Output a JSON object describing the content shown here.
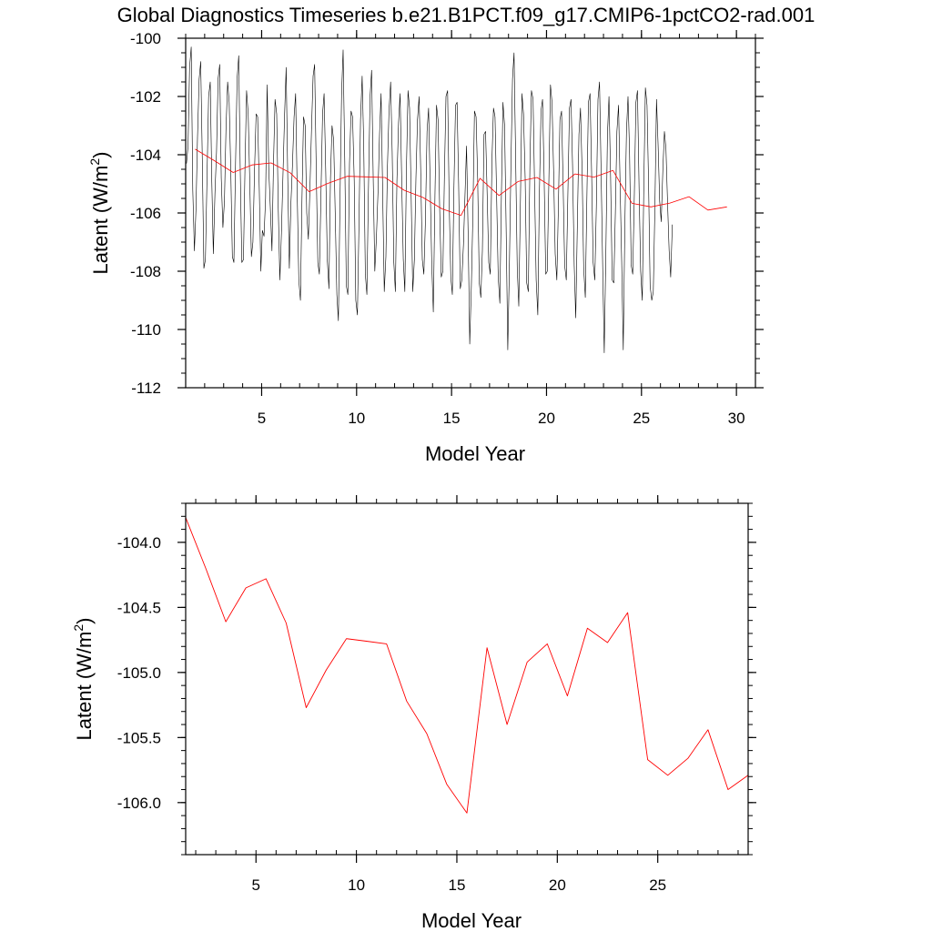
{
  "title": "Global Diagnostics Timeseries b.e21.B1PCT.f09_g17.CMIP6-1pctCO2-rad.001",
  "colors": {
    "monthly": "#000000",
    "annual": "#ff0000",
    "frame": "#000000"
  },
  "chart_data": [
    {
      "type": "line",
      "xlabel": "Model Year",
      "ylabel_main": "Latent (W/m",
      "ylabel_sup": "2",
      "ylabel_close": ")",
      "xlim": [
        1,
        31
      ],
      "ylim": [
        -112,
        -100
      ],
      "xticks": [
        5,
        10,
        15,
        20,
        25,
        30
      ],
      "yticks": [
        -112,
        -110,
        -108,
        -106,
        -104,
        -102,
        -100
      ],
      "ytick_labels": [
        "-112",
        "-110",
        "-108",
        "-106",
        "-104",
        "-102",
        "-100"
      ],
      "series": [
        {
          "color": "black",
          "x_start": 1.0417,
          "x_step": 0.08333,
          "values": [
            -104.3,
            -103.7,
            -101.0,
            -100.3,
            -105.2,
            -107.3,
            -105.9,
            -103.4,
            -101.4,
            -100.8,
            -104.2,
            -107.9,
            -107.6,
            -104.7,
            -102.0,
            -101.5,
            -104.9,
            -107.4,
            -105.3,
            -103.9,
            -101.4,
            -100.9,
            -104.8,
            -106.5,
            -105.6,
            -103.1,
            -101.5,
            -102.2,
            -104.6,
            -107.5,
            -107.7,
            -104.3,
            -101.4,
            -100.6,
            -104.6,
            -107.7,
            -107.6,
            -104.4,
            -101.8,
            -102.6,
            -104.9,
            -107.5,
            -107.0,
            -104.6,
            -102.6,
            -102.7,
            -105.2,
            -108.0,
            -106.6,
            -106.8,
            -105.5,
            -101.6,
            -104.5,
            -105.8,
            -107.3,
            -104.3,
            -102.1,
            -102.6,
            -105.8,
            -108.3,
            -106.7,
            -104.7,
            -102.6,
            -101.0,
            -104.9,
            -107.9,
            -105.7,
            -104.3,
            -102.7,
            -101.9,
            -105.4,
            -108.3,
            -109.0,
            -105.5,
            -102.7,
            -103.0,
            -106.0,
            -106.9,
            -105.2,
            -103.2,
            -101.3,
            -100.9,
            -104.6,
            -107.7,
            -108.1,
            -105.3,
            -102.6,
            -101.9,
            -104.6,
            -107.6,
            -108.6,
            -104.8,
            -103.0,
            -103.5,
            -106.0,
            -108.8,
            -109.7,
            -105.7,
            -101.9,
            -100.4,
            -104.2,
            -108.5,
            -108.8,
            -104.3,
            -102.5,
            -102.7,
            -104.9,
            -109.0,
            -109.5,
            -106.4,
            -102.8,
            -101.3,
            -103.6,
            -108.1,
            -108.8,
            -105.2,
            -102.0,
            -101.1,
            -104.9,
            -108.0,
            -106.9,
            -105.3,
            -103.3,
            -101.9,
            -105.4,
            -108.7,
            -107.5,
            -104.4,
            -102.5,
            -101.5,
            -103.9,
            -107.7,
            -108.7,
            -104.9,
            -102.9,
            -101.9,
            -104.8,
            -107.6,
            -108.7,
            -104.4,
            -101.8,
            -102.4,
            -105.5,
            -108.7,
            -107.6,
            -104.8,
            -102.8,
            -102.0,
            -104.5,
            -107.6,
            -108.1,
            -106.3,
            -103.2,
            -102.4,
            -105.0,
            -107.8,
            -109.4,
            -105.4,
            -102.3,
            -102.8,
            -105.9,
            -108.2,
            -108.0,
            -104.7,
            -102.0,
            -101.8,
            -105.6,
            -108.2,
            -108.8,
            -105.2,
            -102.3,
            -102.2,
            -105.0,
            -108.6,
            -108.3,
            -107.1,
            -105.4,
            -103.7,
            -106.8,
            -110.5,
            -108.5,
            -106.0,
            -102.5,
            -102.7,
            -104.8,
            -108.4,
            -108.9,
            -107.3,
            -103.3,
            -103.2,
            -105.3,
            -107.7,
            -108.1,
            -104.2,
            -102.4,
            -102.7,
            -105.5,
            -108.2,
            -109.1,
            -105.4,
            -102.2,
            -103.0,
            -106.5,
            -110.7,
            -108.0,
            -104.5,
            -101.4,
            -100.5,
            -104.0,
            -107.9,
            -109.2,
            -105.6,
            -101.9,
            -102.6,
            -104.8,
            -108.4,
            -108.7,
            -104.4,
            -101.8,
            -102.1,
            -105.2,
            -108.3,
            -109.5,
            -105.4,
            -102.5,
            -102.1,
            -104.7,
            -108.1,
            -108.0,
            -104.8,
            -101.6,
            -102.2,
            -104.6,
            -107.4,
            -108.3,
            -105.8,
            -102.8,
            -102.5,
            -105.0,
            -107.8,
            -108.3,
            -105.4,
            -102.4,
            -102.1,
            -104.4,
            -107.8,
            -109.6,
            -106.3,
            -103.3,
            -102.4,
            -104.6,
            -107.9,
            -108.9,
            -105.5,
            -102.2,
            -101.9,
            -104.6,
            -107.7,
            -108.3,
            -105.8,
            -102.1,
            -101.5,
            -104.5,
            -107.9,
            -110.8,
            -107.3,
            -103.3,
            -102.0,
            -104.8,
            -108.3,
            -108.4,
            -106.0,
            -103.2,
            -102.3,
            -105.0,
            -107.6,
            -110.7,
            -106.5,
            -103.2,
            -102.0,
            -103.9,
            -107.8,
            -108.1,
            -105.3,
            -102.2,
            -101.8,
            -105.2,
            -108.0,
            -109.0,
            -105.0,
            -101.7,
            -102.3,
            -105.0,
            -108.5,
            -109.0,
            -108.7,
            -105.7,
            -102.1,
            -103.6,
            -105.6,
            -106.3,
            -104.5,
            -103.2,
            -103.8,
            -105.7,
            -107.3,
            -108.2,
            -106.4
          ]
        },
        {
          "color": "red",
          "x": [
            1.5,
            2.5,
            3.5,
            4.5,
            5.5,
            6.5,
            7.5,
            8.5,
            9.5,
            10.5,
            11.5,
            12.5,
            13.5,
            14.5,
            15.5,
            16.5,
            17.5,
            18.5,
            19.5,
            20.5,
            21.5,
            22.5,
            23.5,
            24.5,
            25.5,
            26.5,
            27.5,
            28.5,
            29.5
          ],
          "values": [
            -103.81,
            -104.2,
            -104.61,
            -104.35,
            -104.28,
            -104.62,
            -105.27,
            -104.98,
            -104.74,
            -104.76,
            -104.78,
            -105.22,
            -105.47,
            -105.86,
            -106.08,
            -104.81,
            -105.4,
            -104.92,
            -104.78,
            -105.18,
            -104.66,
            -104.77,
            -104.54,
            -105.67,
            -105.79,
            -105.66,
            -105.44,
            -105.9,
            -105.79
          ]
        }
      ]
    },
    {
      "type": "line",
      "xlabel": "Model Year",
      "ylabel_main": "Latent (W/m",
      "ylabel_sup": "2",
      "ylabel_close": ")",
      "xlim": [
        1.5,
        29.5
      ],
      "ylim": [
        -106.4,
        -103.7
      ],
      "xticks": [
        5,
        10,
        15,
        20,
        25
      ],
      "yticks": [
        -106.0,
        -105.5,
        -105.0,
        -104.5,
        -104.0
      ],
      "ytick_labels": [
        "-106.0",
        "-105.5",
        "-105.0",
        "-104.5",
        "-104.0"
      ],
      "series": [
        {
          "color": "red",
          "x": [
            1.5,
            2.5,
            3.5,
            4.5,
            5.5,
            6.5,
            7.5,
            8.5,
            9.5,
            10.5,
            11.5,
            12.5,
            13.5,
            14.5,
            15.5,
            16.5,
            17.5,
            18.5,
            19.5,
            20.5,
            21.5,
            22.5,
            23.5,
            24.5,
            25.5,
            26.5,
            27.5,
            28.5,
            29.5
          ],
          "values": [
            -103.81,
            -104.2,
            -104.61,
            -104.35,
            -104.28,
            -104.62,
            -105.27,
            -104.98,
            -104.74,
            -104.76,
            -104.78,
            -105.22,
            -105.47,
            -105.86,
            -106.08,
            -104.81,
            -105.4,
            -104.92,
            -104.78,
            -105.18,
            -104.66,
            -104.77,
            -104.54,
            -105.67,
            -105.79,
            -105.66,
            -105.44,
            -105.9,
            -105.79
          ]
        }
      ]
    }
  ]
}
